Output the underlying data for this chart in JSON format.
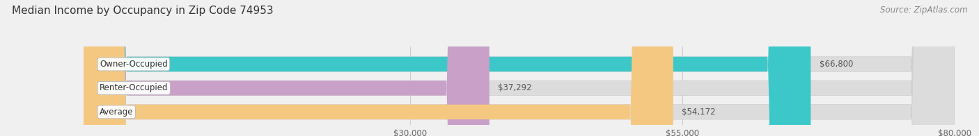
{
  "title": "Median Income by Occupancy in Zip Code 74953",
  "source": "Source: ZipAtlas.com",
  "categories": [
    "Owner-Occupied",
    "Renter-Occupied",
    "Average"
  ],
  "values": [
    66800,
    37292,
    54172
  ],
  "labels": [
    "$66,800",
    "$37,292",
    "$54,172"
  ],
  "bar_colors": [
    "#3cc8c8",
    "#c8a0c8",
    "#f5c882"
  ],
  "xlim_min": 0,
  "xlim_max": 80000,
  "xticks": [
    30000,
    55000,
    80000
  ],
  "xtick_labels": [
    "$30,000",
    "$55,000",
    "$80,000"
  ],
  "background_color": "#f0f0f0",
  "bar_bg_color": "#dcdcdc",
  "title_fontsize": 11,
  "source_fontsize": 8.5,
  "label_fontsize": 8.5,
  "tick_fontsize": 8.5,
  "category_fontsize": 8.5
}
